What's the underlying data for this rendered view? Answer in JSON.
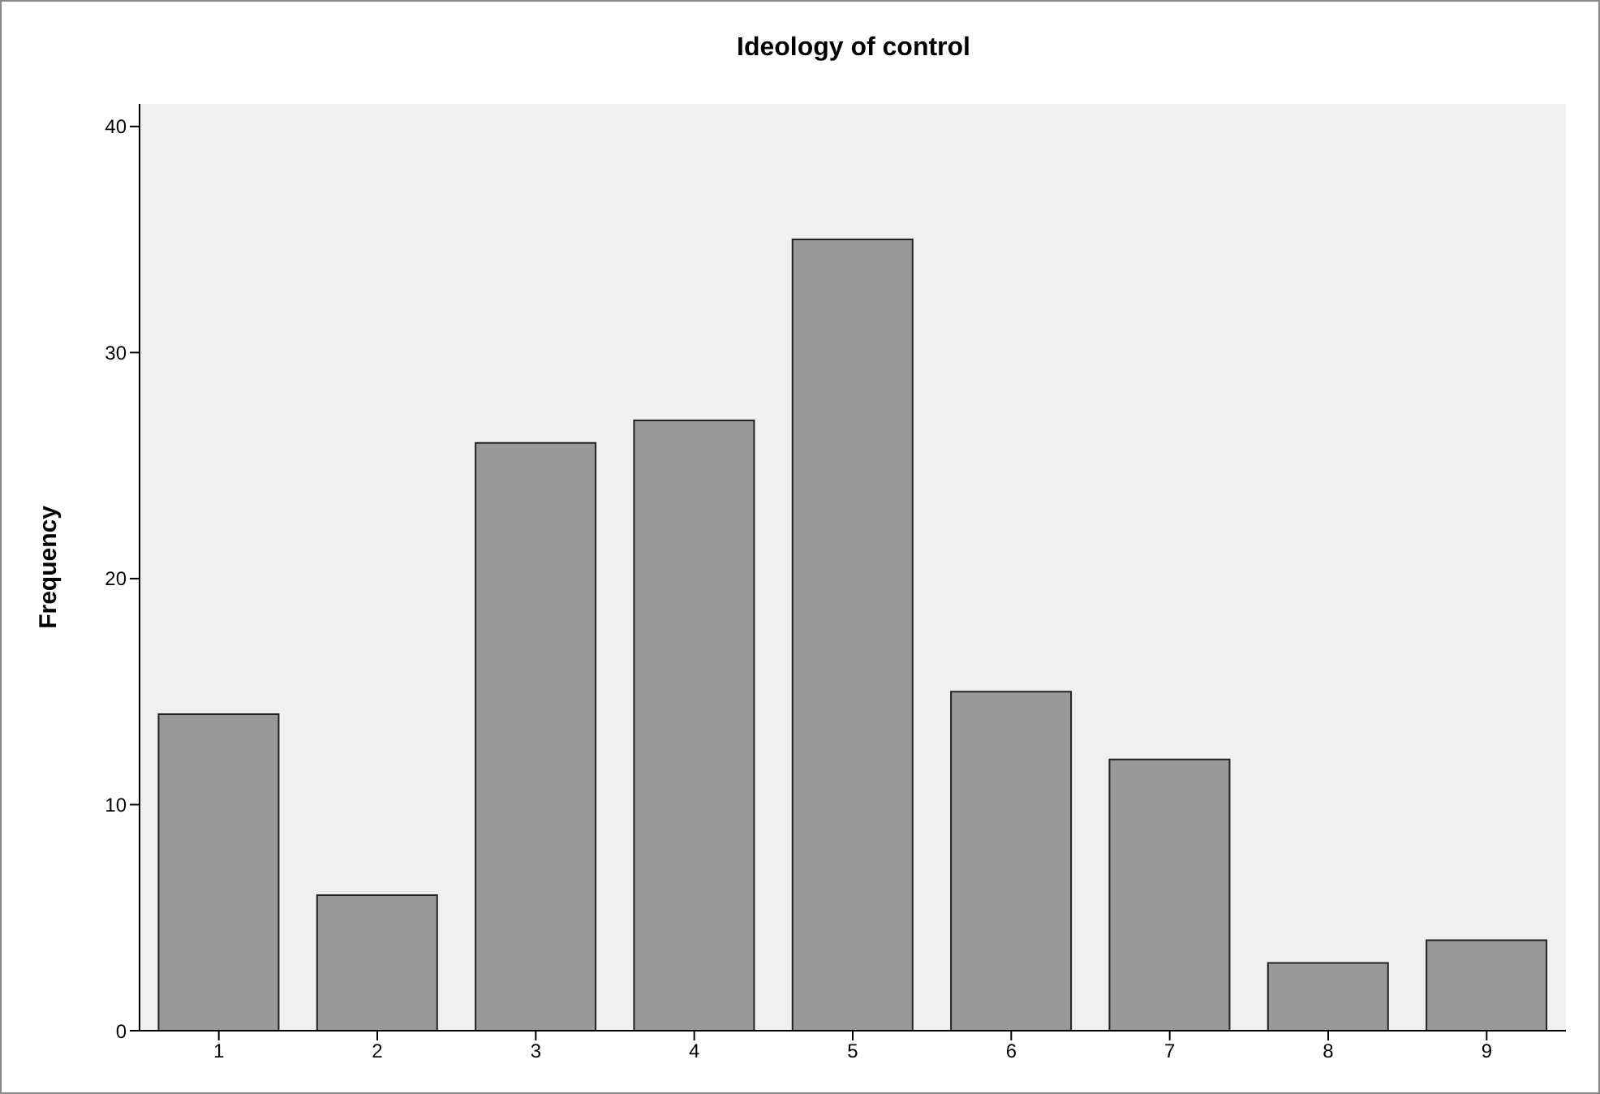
{
  "chart_data": {
    "type": "bar",
    "title": "Ideology of control",
    "ylabel": "Frequency",
    "categories": [
      "1",
      "2",
      "3",
      "4",
      "5",
      "6",
      "7",
      "8",
      "9"
    ],
    "values": [
      14,
      6,
      26,
      27,
      35,
      15,
      12,
      3,
      4
    ],
    "color": "#999999",
    "ylim": [
      0,
      41
    ],
    "yticks": [
      0,
      10,
      20,
      30,
      40
    ],
    "grid": false
  }
}
